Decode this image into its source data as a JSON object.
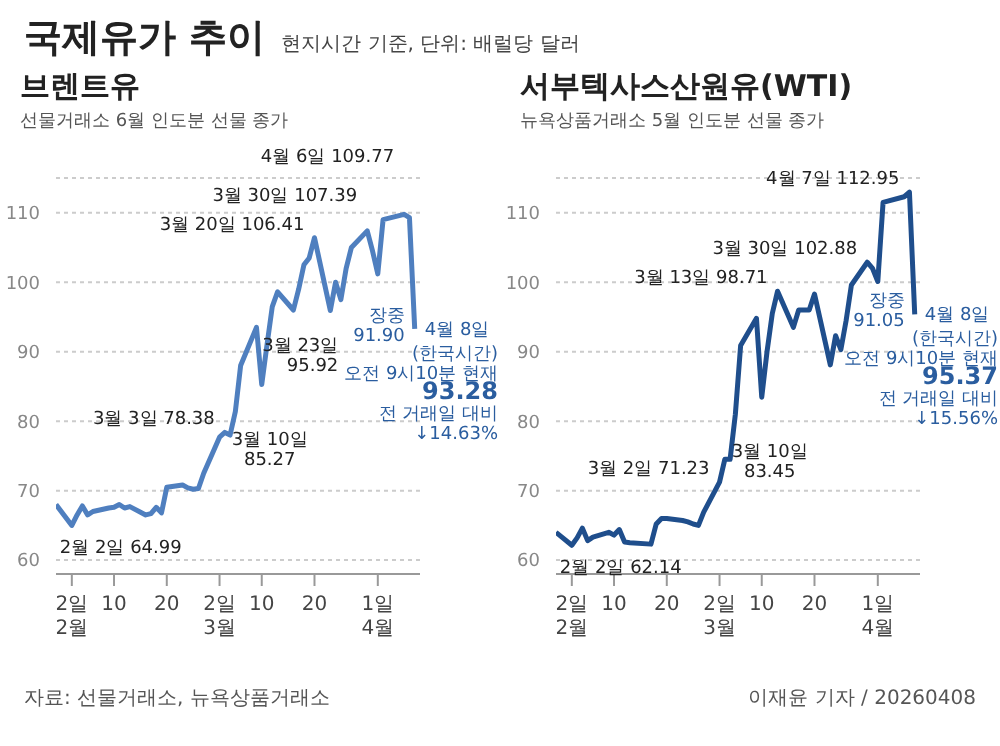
{
  "chart_data": [
    {
      "type": "other",
      "title": "국제유가 추이",
      "subtitle": "현지시간 기준, 단위: 배럴당 달러",
      "annotations": [
        "자료: 선물거래소, 뉴욕상품거래소",
        "이재윤 기자 / 20260408"
      ]
    },
    {
      "type": "line",
      "title": "브렌트유",
      "subtitle": "선물거래소 6월 인도분 선물 종가",
      "x": [
        "--01-30",
        "--02-02",
        "--02-03",
        "--02-04",
        "--02-05",
        "--02-06",
        "--02-09",
        "--02-10",
        "--02-11",
        "--02-12",
        "--02-13",
        "--02-16",
        "--02-17",
        "--02-18",
        "--02-19",
        "--02-20",
        "--02-23",
        "--02-24",
        "--02-25",
        "--02-26",
        "--02-27",
        "--03-02",
        "--03-03",
        "--03-04",
        "--03-05",
        "--03-06",
        "--03-09",
        "--03-10",
        "--03-11",
        "--03-12",
        "--03-13",
        "--03-16",
        "--03-17",
        "--03-18",
        "--03-19",
        "--03-20",
        "--03-23",
        "--03-24",
        "--03-25",
        "--03-26",
        "--03-27",
        "--03-30",
        "--03-31",
        "--04-01",
        "--04-02",
        "--04-06",
        "--04-07",
        "--04-08"
      ],
      "series": [
        {
          "color": "#4f7fbf",
          "values": [
            68,
            64.99,
            66.5,
            67.8,
            66.5,
            67,
            67.5,
            67.6,
            68,
            67.5,
            67.7,
            66.5,
            66.7,
            67.6,
            66.8,
            70.5,
            70.8,
            70.4,
            70.2,
            70.3,
            72.5,
            77.7,
            78.38,
            78,
            81.4,
            88,
            93.5,
            85.27,
            91,
            96.5,
            98.6,
            96,
            99,
            102.5,
            103.5,
            106.41,
            95.92,
            100,
            97.5,
            102,
            105,
            107.39,
            104.5,
            101.2,
            109,
            109.77,
            109.3,
            93.28
          ]
        }
      ],
      "xlim": [
        "--01-30",
        "--04-09"
      ],
      "xticks": [
        {
          "value": "--02-02",
          "label": "2일\n2월"
        },
        {
          "value": "--02-10",
          "label": "10"
        },
        {
          "value": "--02-20",
          "label": "20"
        },
        {
          "value": "--03-02",
          "label": "2일\n3월"
        },
        {
          "value": "--03-10",
          "label": "10"
        },
        {
          "value": "--03-20",
          "label": "20"
        },
        {
          "value": "--04-01",
          "label": "1일\n4월"
        }
      ],
      "ylim": [
        58,
        115
      ],
      "yticks": [
        60,
        70,
        80,
        90,
        100,
        110
      ],
      "grid": "y",
      "marker": "none",
      "line_style": "solid",
      "annotations": [
        {
          "text": "2월 2일 64.99",
          "x": "--02-02",
          "y": 64.99
        },
        {
          "text": "3월 3일 78.38",
          "x": "--03-03",
          "y": 78.38
        },
        {
          "text": "3월 10일\n85.27",
          "x": "--03-10",
          "y": 85.27
        },
        {
          "text": "3월 20일 106.41",
          "x": "--03-20",
          "y": 106.41
        },
        {
          "text": "3월 23일\n95.92",
          "x": "--03-23",
          "y": 95.92
        },
        {
          "text": "3월 30일 107.39",
          "x": "--03-30",
          "y": 107.39
        },
        {
          "text": "4월 6일 109.77",
          "x": "--04-06",
          "y": 109.77
        },
        "장중\n91.90",
        {
          "text": "4월 8일\n(한국시간)\n오전 9시10분 현재\n93.28\n전 거래일 대비\n↓14.63%",
          "x": "--04-08",
          "y": 93.28
        }
      ]
    },
    {
      "type": "line",
      "title": "서부텍사스산원유(WTI)",
      "subtitle": "뉴욕상품거래소 5월 인도분 선물 종가",
      "x": [
        "--01-30",
        "--02-02",
        "--02-03",
        "--02-04",
        "--02-05",
        "--02-06",
        "--02-09",
        "--02-10",
        "--02-11",
        "--02-12",
        "--02-13",
        "--02-17",
        "--02-18",
        "--02-19",
        "--02-20",
        "--02-23",
        "--02-24",
        "--02-25",
        "--02-26",
        "--02-27",
        "--03-02",
        "--03-03",
        "--03-04",
        "--03-05",
        "--03-06",
        "--03-09",
        "--03-10",
        "--03-11",
        "--03-12",
        "--03-13",
        "--03-16",
        "--03-17",
        "--03-18",
        "--03-19",
        "--03-20",
        "--03-23",
        "--03-24",
        "--03-25",
        "--03-26",
        "--03-27",
        "--03-30",
        "--03-31",
        "--04-01",
        "--04-02",
        "--04-06",
        "--04-07",
        "--04-08"
      ],
      "series": [
        {
          "color": "#1f4e8c",
          "values": [
            64,
            62.14,
            63.2,
            64.6,
            62.8,
            63.3,
            64,
            63.6,
            64.4,
            62.6,
            62.5,
            62.3,
            65.2,
            66,
            66,
            65.7,
            65.5,
            65.2,
            65,
            66.9,
            71.23,
            74.5,
            74.5,
            81,
            90.9,
            94.8,
            83.45,
            90,
            95.5,
            98.71,
            93.5,
            96,
            96,
            96,
            98.3,
            88.1,
            92.3,
            90.3,
            94.5,
            99.6,
            102.88,
            102,
            100.1,
            111.5,
            112.3,
            112.95,
            95.37
          ]
        }
      ],
      "xlim": [
        "--01-30",
        "--04-09"
      ],
      "xticks": [
        {
          "value": "--02-02",
          "label": "2일\n2월"
        },
        {
          "value": "--02-10",
          "label": "10"
        },
        {
          "value": "--02-20",
          "label": "20"
        },
        {
          "value": "--03-02",
          "label": "2일\n3월"
        },
        {
          "value": "--03-10",
          "label": "10"
        },
        {
          "value": "--03-20",
          "label": "20"
        },
        {
          "value": "--04-01",
          "label": "1일\n4월"
        }
      ],
      "ylim": [
        58,
        115
      ],
      "yticks": [
        60,
        70,
        80,
        90,
        100,
        110
      ],
      "grid": "y",
      "marker": "none",
      "line_style": "solid",
      "annotations": [
        {
          "text": "2월 2일 62.14",
          "x": "--02-02",
          "y": 62.14
        },
        {
          "text": "3월 2일 71.23",
          "x": "--03-02",
          "y": 71.23
        },
        {
          "text": "3월 10일\n83.45",
          "x": "--03-10",
          "y": 83.45
        },
        {
          "text": "3월 13일 98.71",
          "x": "--03-13",
          "y": 98.71
        },
        {
          "text": "3월 30일 102.88",
          "x": "--03-30",
          "y": 102.88
        },
        {
          "text": "4월 7일 112.95",
          "x": "--04-07",
          "y": 112.95
        },
        "장중\n91.05",
        {
          "text": "4월 8일\n(한국시간)\n오전 9시10분 현재\n95.37\n전 거래일 대비\n↓15.56%",
          "x": "--04-08",
          "y": 95.37
        }
      ]
    }
  ]
}
